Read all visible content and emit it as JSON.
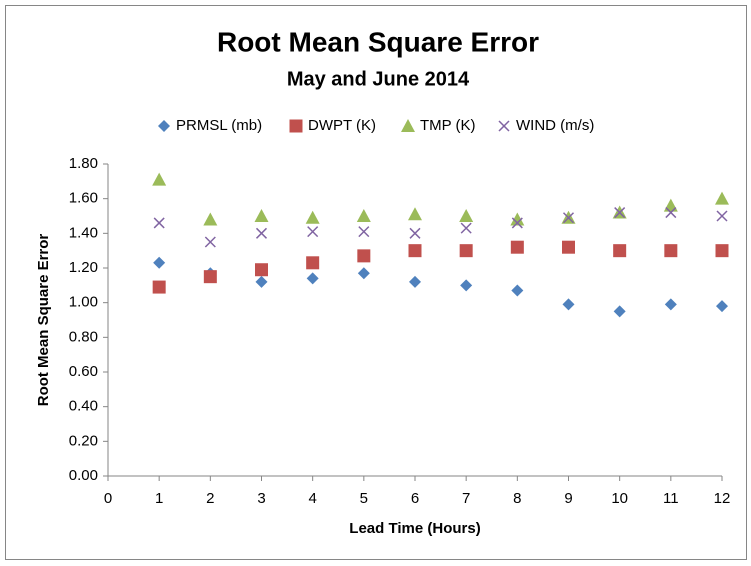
{
  "chart_data": {
    "type": "scatter",
    "title": "Root Mean Square Error",
    "subtitle": "May and June 2014",
    "x_label": "Lead Time (Hours)",
    "y_label": "Root Mean Square Error",
    "x": [
      1,
      2,
      3,
      4,
      5,
      6,
      7,
      8,
      9,
      10,
      11,
      12
    ],
    "series": [
      {
        "name": "PRMSL (mb)",
        "color": "#4f81bd",
        "marker": "diamond",
        "values": [
          1.23,
          1.17,
          1.12,
          1.14,
          1.17,
          1.12,
          1.1,
          1.07,
          0.99,
          0.95,
          0.99,
          0.98
        ]
      },
      {
        "name": "DWPT (K)",
        "color": "#c0504d",
        "marker": "square",
        "values": [
          1.09,
          1.15,
          1.19,
          1.23,
          1.27,
          1.3,
          1.3,
          1.32,
          1.32,
          1.3,
          1.3,
          1.3
        ]
      },
      {
        "name": "TMP (K)",
        "color": "#9bbb59",
        "marker": "triangle",
        "values": [
          1.71,
          1.48,
          1.5,
          1.49,
          1.5,
          1.51,
          1.5,
          1.48,
          1.49,
          1.52,
          1.56,
          1.6
        ]
      },
      {
        "name": "WIND (m/s)",
        "color": "#8064a2",
        "marker": "x",
        "values": [
          1.46,
          1.35,
          1.4,
          1.41,
          1.41,
          1.4,
          1.43,
          1.46,
          1.49,
          1.52,
          1.52,
          1.5
        ]
      }
    ],
    "xlim": [
      0,
      12
    ],
    "xticks": [
      0,
      1,
      2,
      3,
      4,
      5,
      6,
      7,
      8,
      9,
      10,
      11,
      12
    ],
    "ylim": [
      0,
      1.8
    ],
    "yticks": [
      {
        "value": 0,
        "label": "0.00"
      },
      {
        "value": 0.2,
        "label": "0.20"
      },
      {
        "value": 0.4,
        "label": "0.40"
      },
      {
        "value": 0.6,
        "label": "0.60"
      },
      {
        "value": 0.8,
        "label": "0.80"
      },
      {
        "value": 1.0,
        "label": "1.00"
      },
      {
        "value": 1.2,
        "label": "1.20"
      },
      {
        "value": 1.4,
        "label": "1.40"
      },
      {
        "value": 1.6,
        "label": "1.60"
      },
      {
        "value": 1.8,
        "label": "1.80"
      }
    ],
    "grid": false,
    "legend": "top"
  }
}
